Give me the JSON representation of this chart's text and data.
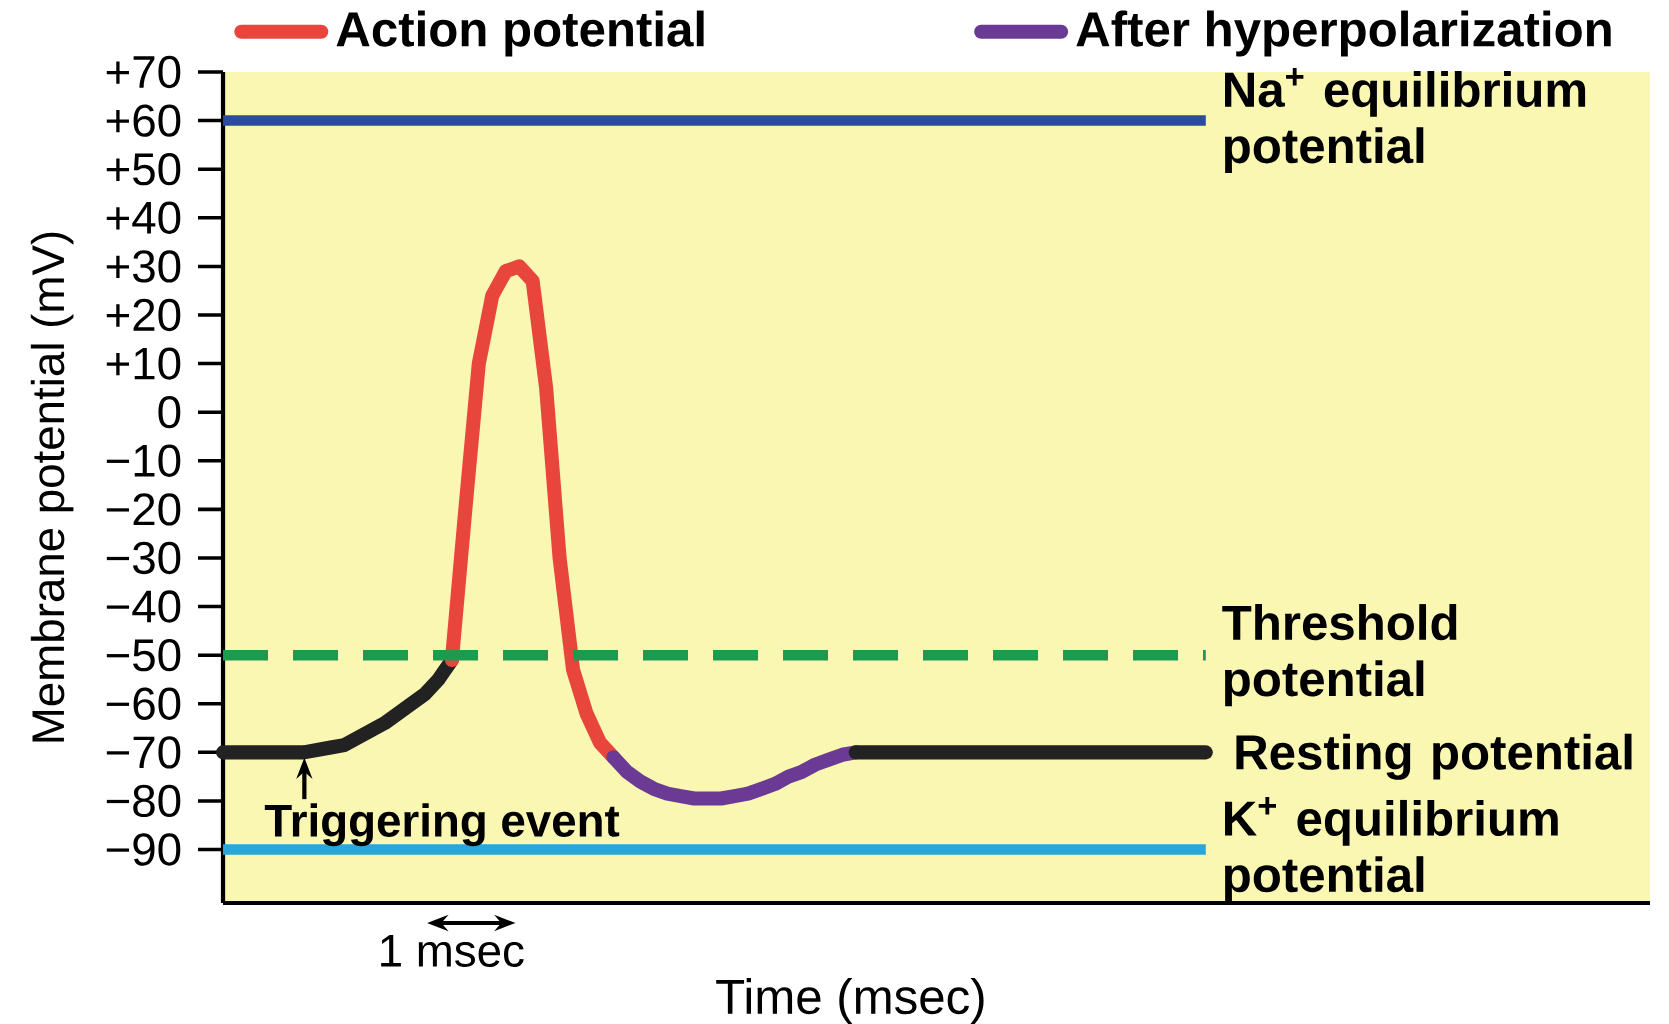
{
  "chart_data": {
    "type": "line",
    "xlabel": "Time (msec)",
    "ylabel": "Membrane potential (mV)",
    "categories": [
      null,
      null,
      null,
      null,
      null,
      null,
      null,
      null,
      null,
      null,
      null,
      null,
      null,
      null,
      null,
      null,
      null,
      null,
      null,
      null,
      null,
      null,
      null,
      null,
      null,
      null,
      null,
      null,
      null,
      null,
      null,
      null,
      null,
      null,
      null,
      null,
      null,
      null,
      null,
      null,
      null,
      null,
      null,
      null,
      null,
      null,
      null,
      null,
      null,
      null,
      null,
      null,
      null,
      null,
      null,
      null,
      null,
      null,
      null,
      null,
      null,
      null,
      null,
      null,
      null,
      null,
      null,
      null,
      null,
      null,
      null,
      null,
      null,
      null
    ],
    "ylim": [
      -101,
      70
    ],
    "yticks": [
      {
        "value": 70,
        "label": "+70"
      },
      {
        "value": 60,
        "label": "+60"
      },
      {
        "value": 50,
        "label": "+50"
      },
      {
        "value": 40,
        "label": "+40"
      },
      {
        "value": 30,
        "label": "+30"
      },
      {
        "value": 20,
        "label": "+20"
      },
      {
        "value": 10,
        "label": "+10"
      },
      {
        "value": 0,
        "label": "0"
      },
      {
        "value": -10,
        "label": "−10"
      },
      {
        "value": -20,
        "label": "−20"
      },
      {
        "value": -30,
        "label": "−30"
      },
      {
        "value": -40,
        "label": "−40"
      },
      {
        "value": -50,
        "label": "−50"
      },
      {
        "value": -60,
        "label": "−60"
      },
      {
        "value": -70,
        "label": "−70"
      },
      {
        "value": -80,
        "label": "−80"
      },
      {
        "value": -90,
        "label": "−90"
      }
    ],
    "tick_labels": "y",
    "legend": "top",
    "series": [
      {
        "color": "#222222",
        "values": [
          -70,
          -70,
          -70,
          -70,
          -70,
          -70,
          -70,
          -69.5,
          -69,
          -68.5,
          -67,
          -65.5,
          -64,
          -62,
          -60,
          -58,
          -55,
          -51,
          null,
          null,
          null,
          null,
          null,
          null,
          null,
          null,
          null,
          null,
          null,
          null,
          null,
          null,
          null,
          null,
          null,
          null,
          null,
          null,
          null,
          null,
          null,
          null,
          null,
          null,
          null,
          null,
          null,
          null,
          null,
          null,
          null,
          null,
          null,
          null,
          null,
          null,
          null,
          null,
          null,
          null,
          null,
          null,
          null,
          null,
          null,
          null,
          null,
          null,
          null,
          null,
          null,
          null,
          null,
          null
        ]
      },
      {
        "name": "Action potential",
        "color": "#e8453c",
        "values": [
          null,
          null,
          null,
          null,
          null,
          null,
          null,
          null,
          null,
          null,
          null,
          null,
          null,
          null,
          null,
          null,
          null,
          -51,
          -20,
          10,
          24,
          29,
          30,
          27,
          5,
          -30,
          -53,
          -62,
          -68,
          -71,
          null,
          null,
          null,
          null,
          null,
          null,
          null,
          null,
          null,
          null,
          null,
          null,
          null,
          null,
          null,
          null,
          null,
          null,
          null,
          null,
          null,
          null,
          null,
          null,
          null,
          null,
          null,
          null,
          null,
          null,
          null,
          null,
          null,
          null,
          null,
          null,
          null,
          null,
          null,
          null,
          null,
          null,
          null,
          null
        ]
      },
      {
        "name": "After hyperpolarization",
        "color": "#6b3a94",
        "values": [
          null,
          null,
          null,
          null,
          null,
          null,
          null,
          null,
          null,
          null,
          null,
          null,
          null,
          null,
          null,
          null,
          null,
          null,
          null,
          null,
          null,
          null,
          null,
          null,
          null,
          null,
          null,
          null,
          null,
          -71,
          -74,
          -76,
          -77.5,
          -78.5,
          -79,
          -79.5,
          -79.5,
          -79.5,
          -79,
          -78.5,
          -77.5,
          -76.5,
          -75,
          -74,
          -72.5,
          -71.5,
          -70.5,
          -70,
          null,
          null,
          null,
          null,
          null,
          null,
          null,
          null,
          null,
          null,
          null,
          null,
          null,
          null,
          null,
          null,
          null,
          null,
          null,
          null,
          null,
          null,
          null,
          null,
          null,
          null
        ]
      },
      {
        "color": "#222222",
        "values": [
          null,
          null,
          null,
          null,
          null,
          null,
          null,
          null,
          null,
          null,
          null,
          null,
          null,
          null,
          null,
          null,
          null,
          null,
          null,
          null,
          null,
          null,
          null,
          null,
          null,
          null,
          null,
          null,
          null,
          null,
          null,
          null,
          null,
          null,
          null,
          null,
          null,
          null,
          null,
          null,
          null,
          null,
          null,
          null,
          null,
          null,
          null,
          -70,
          -70,
          -70,
          -70,
          -70,
          -70,
          -70,
          -70,
          -70,
          -70,
          -70,
          -70,
          -70,
          -70,
          -70,
          -70,
          -70,
          -70,
          -70,
          -70,
          -70,
          -70,
          -70,
          -70,
          -70,
          -70,
          -70
        ]
      }
    ],
    "ref_lines": [
      {
        "axis": "y",
        "value": 60,
        "label": "Na$^{+}$ equilibrium potential",
        "color": "#2b4c9a"
      },
      {
        "axis": "y",
        "value": -50,
        "label": "Threshold potential",
        "color": "#1e9a50",
        "line_style": "dashed"
      },
      {
        "axis": "y",
        "value": -90,
        "label": "K$^{+}$ equilibrium potential",
        "color": "#2aa7d8"
      }
    ],
    "annotations": [
      "Resting potential",
      "Triggering event",
      "1 msec"
    ]
  }
}
